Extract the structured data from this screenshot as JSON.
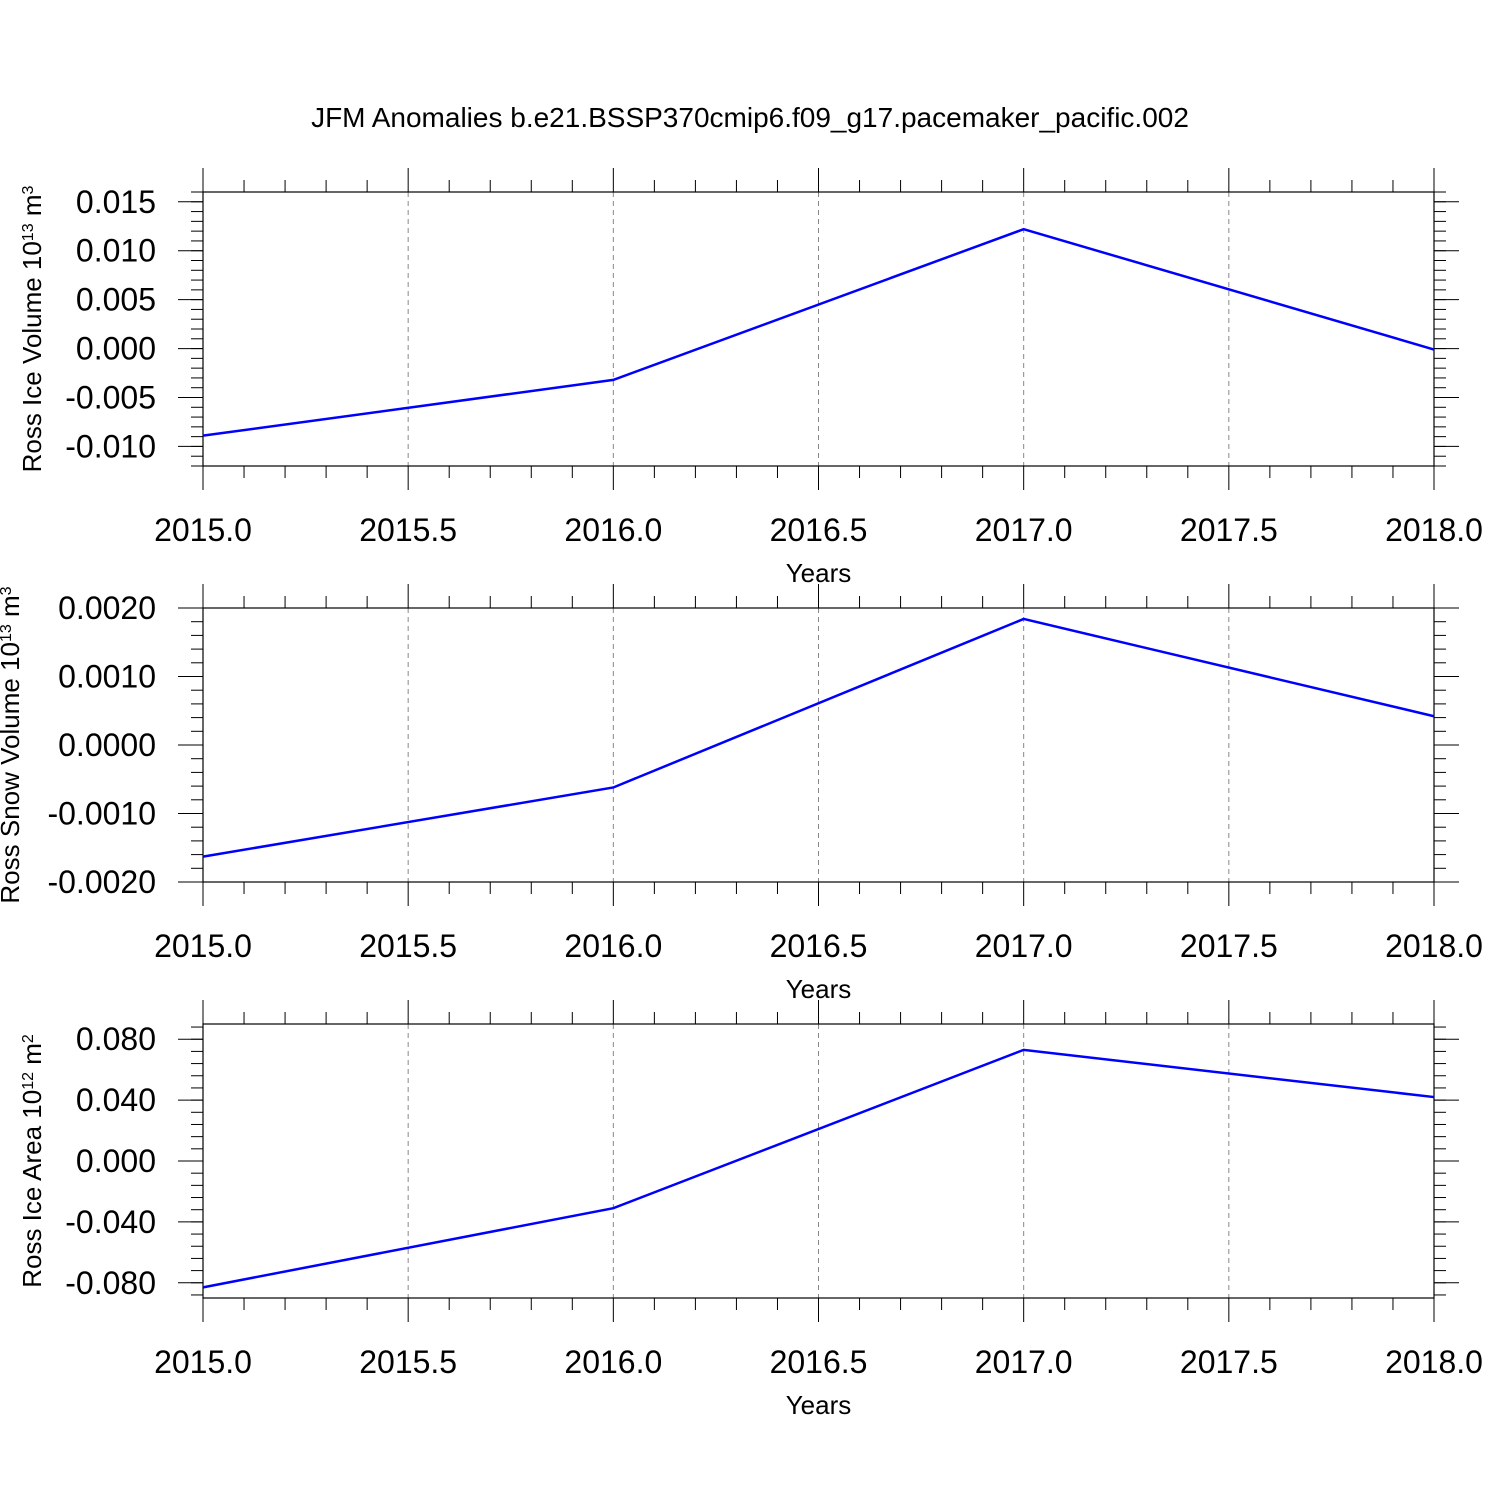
{
  "title": "JFM Anomalies b.e21.BSSP370cmip6.f09_g17.pacemaker_pacific.002",
  "line_color": "#0000ff",
  "chart_data": [
    {
      "type": "line",
      "xlabel": "Years",
      "ylabel": {
        "text": "Ross Ice Volume 10",
        "sup": "13",
        "unit": " m",
        "unit_sup": "3"
      },
      "xlim": [
        2015.0,
        2018.0
      ],
      "ylim": [
        -0.012,
        0.016
      ],
      "x_ticks": [
        "2015.0",
        "2015.5",
        "2016.0",
        "2016.5",
        "2017.0",
        "2017.5",
        "2018.0"
      ],
      "y_ticks": [
        "0.015",
        "0.010",
        "0.005",
        "0.000",
        "-0.005",
        "-0.010"
      ],
      "y_tick_values": [
        0.015,
        0.01,
        0.005,
        0.0,
        -0.005,
        -0.01
      ],
      "y_minor_step": 0.001,
      "grid": "x dashed",
      "x": [
        2015,
        2016,
        2017,
        2018
      ],
      "series": [
        {
          "values": [
            -0.0089,
            -0.0032,
            0.0122,
            -0.0001
          ]
        }
      ]
    },
    {
      "type": "line",
      "xlabel": "Years",
      "ylabel": {
        "text": "Ross Snow Volume 10",
        "sup": "13",
        "unit": " m",
        "unit_sup": "3"
      },
      "xlim": [
        2015.0,
        2018.0
      ],
      "ylim": [
        -0.002,
        0.002
      ],
      "x_ticks": [
        "2015.0",
        "2015.5",
        "2016.0",
        "2016.5",
        "2017.0",
        "2017.5",
        "2018.0"
      ],
      "y_ticks": [
        "0.0020",
        "0.0010",
        "0.0000",
        "-0.0010",
        "-0.0020"
      ],
      "y_tick_values": [
        0.002,
        0.001,
        0.0,
        -0.001,
        -0.002
      ],
      "y_minor_step": 0.0002,
      "grid": "x dashed",
      "x": [
        2015,
        2016,
        2017,
        2018
      ],
      "series": [
        {
          "values": [
            -0.00163,
            -0.00062,
            0.00184,
            0.00042
          ]
        }
      ]
    },
    {
      "type": "line",
      "xlabel": "Years",
      "ylabel": {
        "text": "Ross Ice Area 10",
        "sup": "12",
        "unit": " m",
        "unit_sup": "2"
      },
      "xlim": [
        2015.0,
        2018.0
      ],
      "ylim": [
        -0.09,
        0.09
      ],
      "x_ticks": [
        "2015.0",
        "2015.5",
        "2016.0",
        "2016.5",
        "2017.0",
        "2017.5",
        "2018.0"
      ],
      "y_ticks": [
        "0.080",
        "0.040",
        "0.000",
        "-0.040",
        "-0.080"
      ],
      "y_tick_values": [
        0.08,
        0.04,
        0.0,
        -0.04,
        -0.08
      ],
      "y_minor_step": 0.008,
      "grid": "x dashed",
      "x": [
        2015,
        2016,
        2017,
        2018
      ],
      "series": [
        {
          "values": [
            -0.083,
            -0.031,
            0.073,
            0.042
          ]
        }
      ]
    }
  ]
}
